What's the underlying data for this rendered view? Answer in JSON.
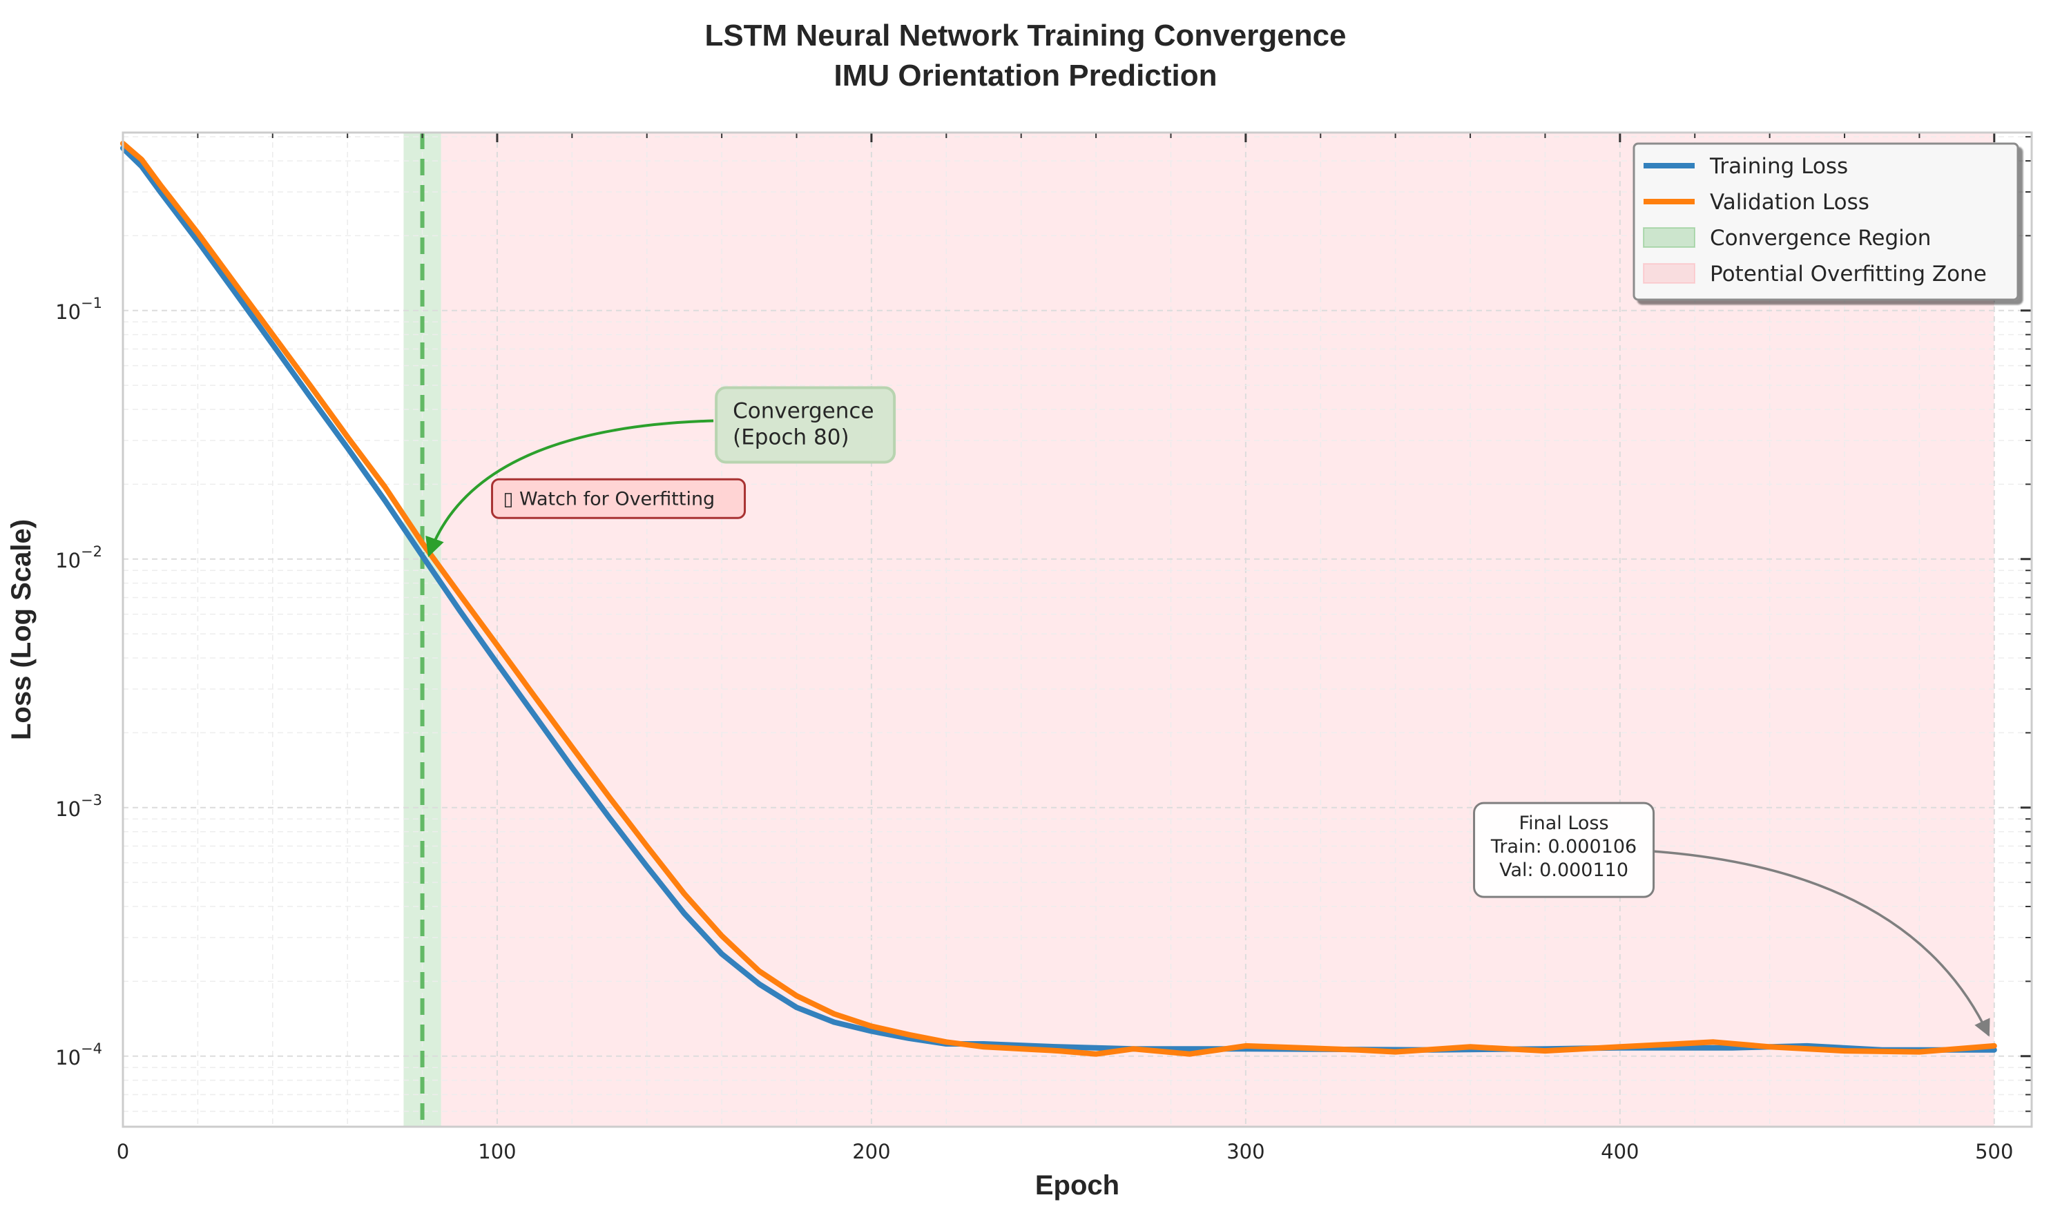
{
  "chart_data": {
    "type": "line",
    "title": "LSTM Neural Network Training Convergence",
    "subtitle": "IMU Orientation Prediction",
    "xlabel": "Epoch",
    "ylabel": "Loss (Log Scale)",
    "xlim": [
      0,
      510
    ],
    "ylim": [
      5.2e-05,
      0.52
    ],
    "yscale": "log",
    "grid": true,
    "legend_position": "top-right",
    "x_ticks": [
      {
        "value": 0,
        "label": "0"
      },
      {
        "value": 100,
        "label": "100"
      },
      {
        "value": 200,
        "label": "200"
      },
      {
        "value": 300,
        "label": "300"
      },
      {
        "value": 400,
        "label": "400"
      },
      {
        "value": 500,
        "label": "500"
      }
    ],
    "y_ticks": [
      {
        "value": 0.1,
        "base": "10",
        "exp": "−1"
      },
      {
        "value": 0.01,
        "base": "10",
        "exp": "−2"
      },
      {
        "value": 0.001,
        "base": "10",
        "exp": "−3"
      },
      {
        "value": 0.0001,
        "base": "10",
        "exp": "−4"
      }
    ],
    "series": [
      {
        "name": "Training Loss",
        "color": "#3381bd",
        "points": [
          [
            0,
            0.45
          ],
          [
            5,
            0.38
          ],
          [
            10,
            0.3
          ],
          [
            20,
            0.19
          ],
          [
            30,
            0.118
          ],
          [
            40,
            0.073
          ],
          [
            50,
            0.045
          ],
          [
            60,
            0.028
          ],
          [
            70,
            0.0172
          ],
          [
            80,
            0.0103
          ],
          [
            90,
            0.0062
          ],
          [
            100,
            0.0038
          ],
          [
            110,
            0.00235
          ],
          [
            120,
            0.00145
          ],
          [
            130,
            0.00091
          ],
          [
            140,
            0.00058
          ],
          [
            150,
            0.000375
          ],
          [
            160,
            0.000258
          ],
          [
            170,
            0.000195
          ],
          [
            180,
            0.000157
          ],
          [
            190,
            0.000137
          ],
          [
            200,
            0.000126
          ],
          [
            210,
            0.000118
          ],
          [
            220,
            0.000112
          ],
          [
            230,
            0.000112
          ],
          [
            250,
            0.000109
          ],
          [
            270,
            0.000107
          ],
          [
            300,
            0.000107
          ],
          [
            350,
            0.000106
          ],
          [
            380,
            0.000107
          ],
          [
            400,
            0.000108
          ],
          [
            430,
            0.000108
          ],
          [
            450,
            0.00011
          ],
          [
            470,
            0.000106
          ],
          [
            500,
            0.000106
          ]
        ]
      },
      {
        "name": "Validation Loss",
        "color": "#ff7f0e",
        "points": [
          [
            0,
            0.47
          ],
          [
            5,
            0.405
          ],
          [
            10,
            0.32
          ],
          [
            20,
            0.205
          ],
          [
            30,
            0.128
          ],
          [
            40,
            0.08
          ],
          [
            50,
            0.05
          ],
          [
            60,
            0.031
          ],
          [
            70,
            0.0195
          ],
          [
            80,
            0.0116
          ],
          [
            90,
            0.0072
          ],
          [
            100,
            0.0045
          ],
          [
            110,
            0.0028
          ],
          [
            120,
            0.00175
          ],
          [
            130,
            0.0011
          ],
          [
            140,
            0.0007
          ],
          [
            150,
            0.00045
          ],
          [
            160,
            0.000305
          ],
          [
            170,
            0.00022
          ],
          [
            180,
            0.000175
          ],
          [
            190,
            0.000148
          ],
          [
            200,
            0.000132
          ],
          [
            210,
            0.000122
          ],
          [
            220,
            0.000114
          ],
          [
            230,
            0.000109
          ],
          [
            250,
            0.000105
          ],
          [
            260,
            0.000102
          ],
          [
            270,
            0.000107
          ],
          [
            285,
            0.000102
          ],
          [
            300,
            0.00011
          ],
          [
            330,
            0.000106
          ],
          [
            340,
            0.000104
          ],
          [
            360,
            0.000109
          ],
          [
            380,
            0.000105
          ],
          [
            400,
            0.000109
          ],
          [
            425,
            0.000114
          ],
          [
            440,
            0.000109
          ],
          [
            460,
            0.000105
          ],
          [
            480,
            0.000104
          ],
          [
            500,
            0.00011
          ]
        ]
      }
    ],
    "regions": [
      {
        "name": "Convergence Region",
        "x0": 75,
        "x1": 85,
        "color": "#4caf50",
        "opacity": 0.2
      },
      {
        "name": "Potential Overfitting Zone",
        "x0": 85,
        "x1": 500,
        "color": "#ff9aa2",
        "opacity": 0.22
      }
    ],
    "vline": {
      "x": 80,
      "color": "#4caf50"
    },
    "legend": [
      {
        "label": "Training Loss",
        "kind": "line",
        "color": "#3381bd"
      },
      {
        "label": "Validation Loss",
        "kind": "line",
        "color": "#ff7f0e"
      },
      {
        "label": "Convergence Region",
        "kind": "patch",
        "color": "#4caf50",
        "opacity": 0.25
      },
      {
        "label": "Potential Overfitting Zone",
        "kind": "patch",
        "color": "#ff9aa2",
        "opacity": 0.28
      }
    ],
    "annotations": {
      "convergence": {
        "lines": [
          "Convergence",
          "(Epoch 80)"
        ],
        "x": 160,
        "y": 0.036,
        "target_x": 81,
        "target_y": 0.0101
      },
      "overfit_warning": {
        "text": "▯ Watch for Overfitting",
        "x": 99,
        "y": 0.0175
      },
      "final_loss": {
        "lines": [
          "Final Loss",
          "Train: 0.000106",
          "Val: 0.000110"
        ],
        "x": 385,
        "y": 0.00072,
        "target_x": 500,
        "target_y": 0.000111
      }
    }
  }
}
